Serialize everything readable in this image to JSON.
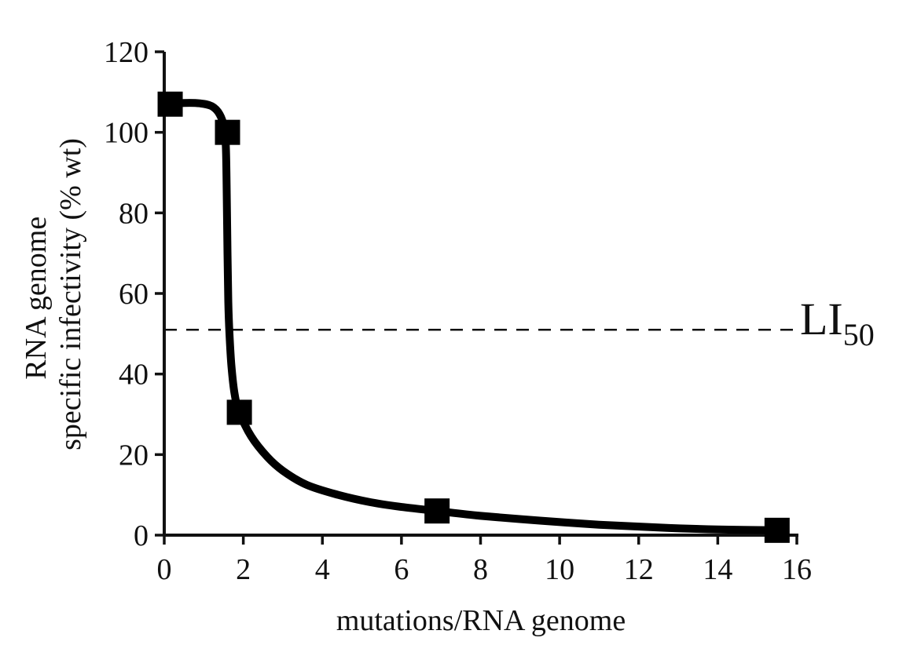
{
  "chart_data": {
    "type": "line",
    "xlabel": "mutations/RNA genome",
    "ylabel_lines": [
      "RNA genome",
      "specific infectivity (% wt)"
    ],
    "xlim": [
      0,
      16
    ],
    "ylim": [
      0,
      120
    ],
    "x_ticks": [
      "0",
      "2",
      "4",
      "6",
      "8",
      "10",
      "12",
      "14",
      "16"
    ],
    "y_ticks": [
      "0",
      "20",
      "40",
      "60",
      "80",
      "100",
      "120"
    ],
    "points": [
      {
        "x": 0.15,
        "y": 107
      },
      {
        "x": 1.6,
        "y": 100
      },
      {
        "x": 1.9,
        "y": 30.5
      },
      {
        "x": 6.9,
        "y": 6
      },
      {
        "x": 15.5,
        "y": 1.2
      }
    ],
    "fit_curve": [
      [
        0.0,
        107
      ],
      [
        0.5,
        107.3
      ],
      [
        0.9,
        107.2
      ],
      [
        1.2,
        106.5
      ],
      [
        1.4,
        104.5
      ],
      [
        1.52,
        101
      ],
      [
        1.56,
        96
      ],
      [
        1.58,
        85
      ],
      [
        1.6,
        70
      ],
      [
        1.62,
        58
      ],
      [
        1.65,
        50
      ],
      [
        1.7,
        42
      ],
      [
        1.78,
        35
      ],
      [
        1.9,
        30.5
      ],
      [
        2.2,
        24.5
      ],
      [
        2.6,
        19.5
      ],
      [
        3.0,
        16
      ],
      [
        3.6,
        12.5
      ],
      [
        4.4,
        10
      ],
      [
        5.2,
        8.2
      ],
      [
        6.0,
        7
      ],
      [
        6.9,
        6
      ],
      [
        8.0,
        4.8
      ],
      [
        9.5,
        3.6
      ],
      [
        11.0,
        2.6
      ],
      [
        12.5,
        1.9
      ],
      [
        14.0,
        1.4
      ],
      [
        15.5,
        1.2
      ]
    ],
    "reference_line": {
      "y": 51,
      "style": "dashed",
      "label": "LI",
      "label_subscript": "50"
    },
    "grid": false
  }
}
